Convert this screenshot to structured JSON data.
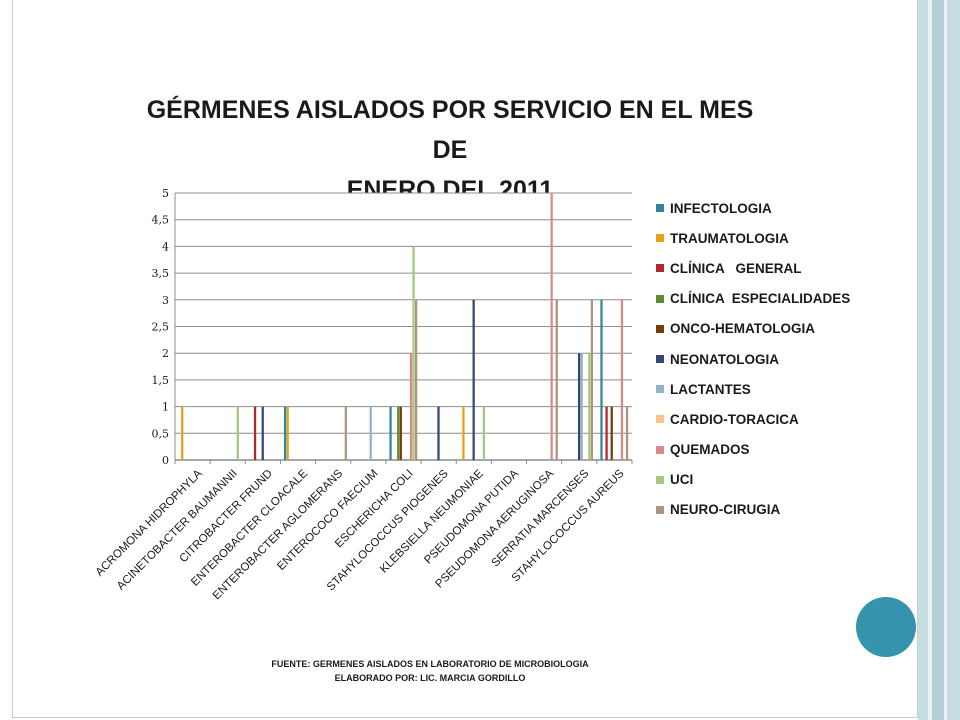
{
  "slide": {
    "title_line1": "GÉRMENES AISLADOS POR SERVICIO EN EL MES DE",
    "title_line2": "ENERO DEL 2011",
    "footer_line1": "FUENTE: GERMENES AISLADOS EN LABORATORIO DE MICROBIOLOGIA",
    "footer_line2": "ELABORADO POR: LIC. MARCIA GORDILLO",
    "accent_color": "#3593ad"
  },
  "chart_data": {
    "type": "bar",
    "title": "GÉRMENES AISLADOS POR SERVICIO EN EL MES DE ENERO DEL 2011",
    "xlabel": "",
    "ylabel": "",
    "ylim": [
      0,
      5
    ],
    "yticks": [
      "0",
      "0,5",
      "1",
      "1,5",
      "2",
      "2,5",
      "3",
      "3,5",
      "4",
      "4,5",
      "5"
    ],
    "grid": true,
    "legend_position": "right",
    "categories": [
      "ACROMONA HIDROPHYLA",
      "ACINETOBACTER BAUMANNII",
      "CITROBACTER FRUND",
      "ENTEROBACTER CLOACALE",
      "ENTEROBACTER AGLOMERANS",
      "ENTEROCOCO FAECIUM",
      "ESCHERICHA COLI",
      "STAHYLOCOCCUS PIOGENES",
      "KLEBSIELLA NEUMONIAE",
      "PSEUDOMONA PUTIDA",
      "PSEUDOMONA AERUGINOSA",
      "SERRATIA MARCENSES",
      "STAHYLOCOCCUS AUREUS"
    ],
    "series": [
      {
        "name": "INFECTOLOGIA",
        "color": "#31859c",
        "values": [
          0,
          0,
          0,
          1,
          0,
          0,
          1,
          0,
          0,
          0,
          0,
          0,
          3
        ]
      },
      {
        "name": "TRAUMATOLOGIA",
        "color": "#e6a118",
        "values": [
          1,
          0,
          0,
          1,
          0,
          0,
          0,
          0,
          1,
          0,
          0,
          0,
          0
        ]
      },
      {
        "name": "CLÍNICA   GENERAL",
        "color": "#b3262e",
        "values": [
          0,
          0,
          1,
          0,
          0,
          0,
          0,
          0,
          0,
          0,
          0,
          0,
          1
        ]
      },
      {
        "name": "CLÍNICA  ESPECIALIDADES",
        "color": "#5e8c2e",
        "values": [
          0,
          0,
          0,
          0,
          0,
          0,
          1,
          0,
          0,
          0,
          0,
          0,
          0
        ]
      },
      {
        "name": "ONCO-HEMATOLOGIA",
        "color": "#7a3b0a",
        "values": [
          0,
          0,
          0,
          0,
          0,
          0,
          1,
          0,
          0,
          0,
          0,
          0,
          1
        ]
      },
      {
        "name": "NEONATOLOGIA",
        "color": "#33467a",
        "values": [
          0,
          0,
          1,
          0,
          0,
          0,
          0,
          1,
          3,
          0,
          0,
          2,
          0
        ]
      },
      {
        "name": "LACTANTES",
        "color": "#93b3c8",
        "values": [
          0,
          0,
          0,
          0,
          0,
          1,
          0,
          0,
          0,
          0,
          0,
          2,
          0
        ]
      },
      {
        "name": "CARDIO-TORACICA",
        "color": "#fbc38a",
        "values": [
          0,
          0,
          0,
          0,
          0,
          0,
          0,
          0,
          0,
          0,
          0,
          0,
          0
        ]
      },
      {
        "name": "QUEMADOS",
        "color": "#d88a8a",
        "values": [
          0,
          0,
          0,
          0,
          0,
          0,
          2,
          0,
          0,
          0,
          5,
          0,
          3
        ]
      },
      {
        "name": "UCI",
        "color": "#a5c77e",
        "values": [
          0,
          1,
          0,
          0,
          0,
          0,
          4,
          0,
          1,
          0,
          0,
          2,
          0
        ]
      },
      {
        "name": "NEURO-CIRUGIA",
        "color": "#b1927e",
        "values": [
          0,
          0,
          0,
          0,
          1,
          0,
          3,
          0,
          0,
          0,
          3,
          3,
          1
        ]
      }
    ]
  }
}
